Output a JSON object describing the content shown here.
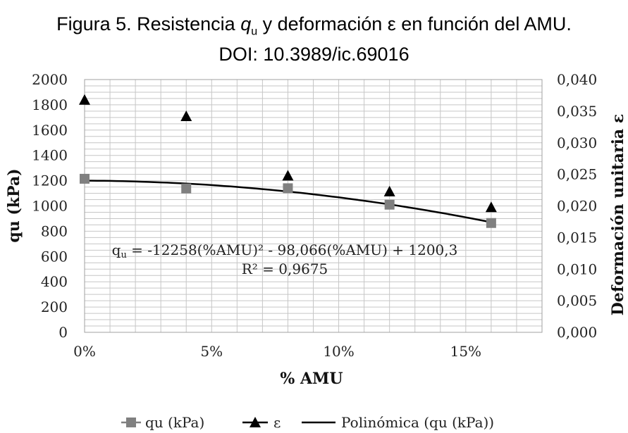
{
  "figure": {
    "title_prefix": "Figura 5. Resistencia ",
    "title_symbol": "q",
    "title_subscript": "u",
    "title_suffix": " y deformación ε en función del AMU.",
    "doi": "DOI: 10.3989/ic.69016"
  },
  "chart_data": {
    "type": "scatter",
    "xlabel": "% AMU",
    "ylabel": "qu (kPa)",
    "y2label": "Deformación unitaria ε",
    "xlim": [
      0,
      0.18
    ],
    "xticks": [
      0,
      0.05,
      0.1,
      0.15
    ],
    "xtick_labels": [
      "0%",
      "5%",
      "10%",
      "15%"
    ],
    "ylim": [
      0,
      2000
    ],
    "yticks": [
      0,
      200,
      400,
      600,
      800,
      1000,
      1200,
      1400,
      1600,
      1800,
      2000
    ],
    "ytick_labels": [
      "0",
      "200",
      "400",
      "600",
      "800",
      "1000",
      "1200",
      "1400",
      "1600",
      "1800",
      "2000"
    ],
    "y2lim": [
      0,
      0.04
    ],
    "y2ticks": [
      0,
      0.005,
      0.01,
      0.015,
      0.02,
      0.025,
      0.03,
      0.035,
      0.04
    ],
    "y2tick_labels": [
      "0,000",
      "0,005",
      "0,010",
      "0,015",
      "0,020",
      "0,025",
      "0,030",
      "0,035",
      "0,040"
    ],
    "grid": true,
    "legend_position": "bottom",
    "series": [
      {
        "name": "qu (kPa)",
        "marker": "square",
        "axis": "left",
        "color": "#808080",
        "x": [
          0,
          0.04,
          0.08,
          0.12,
          0.16
        ],
        "y": [
          1215,
          1138,
          1140,
          1010,
          865
        ]
      },
      {
        "name": "ε",
        "marker": "triangle",
        "axis": "right",
        "color": "#000000",
        "x": [
          0,
          0.04,
          0.08,
          0.12,
          0.16
        ],
        "y": [
          0.0368,
          0.0342,
          0.0248,
          0.0223,
          0.0198
        ]
      },
      {
        "name": "Polinómica (qu (kPa))",
        "marker": "line",
        "axis": "left",
        "color": "#000000",
        "coefficients": [
          -12258,
          -98.066,
          1200.3
        ],
        "x_range": [
          0,
          0.16
        ]
      }
    ],
    "annotation": {
      "eq_prefix": "q",
      "eq_sub": "u",
      "eq_body": " = -12258(%AMU)² - 98,066(%AMU) + 1200,3",
      "r2": "R² = 0,9675"
    }
  }
}
